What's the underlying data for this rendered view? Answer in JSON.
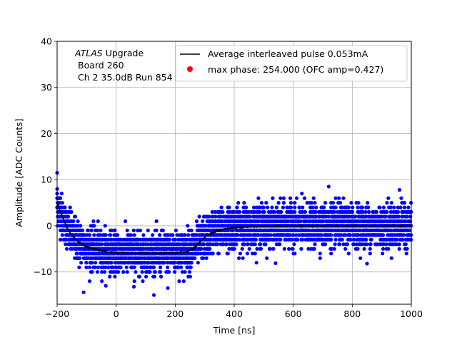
{
  "chart_data": {
    "type": "scatter",
    "title": "",
    "xlabel": "Time [ns]",
    "ylabel": "Amplitude [ADC Counts]",
    "xlim": [
      -200,
      1000
    ],
    "ylim": [
      -17,
      40
    ],
    "xticks": [
      -200,
      0,
      200,
      400,
      600,
      800,
      1000
    ],
    "yticks": [
      -10,
      0,
      10,
      20,
      30,
      40
    ],
    "grid": true,
    "annotation": {
      "line1_italic": "ATLAS",
      "line1_rest": " Upgrade",
      "line2": "Board 260",
      "line3": "Ch 2 35.0dB  Run 854"
    },
    "legend": {
      "placement": "top-right",
      "entries": [
        {
          "label": "Average interleaved pulse 0.053mA",
          "marker": "line",
          "color": "#000000"
        },
        {
          "label": "max phase: 254.000 (OFC amp=0.427)",
          "marker": "dot",
          "color": "#ff0000"
        }
      ]
    },
    "series": [
      {
        "name": "",
        "kind": "scatter",
        "color": "#0000ff",
        "description_values": {
          "baseline_before": 0,
          "undershoot_level": -5.8,
          "undershoot_start": -200,
          "undershoot_end": 250,
          "recovery_end": 420,
          "spread": 2.2
        }
      },
      {
        "name": "Average interleaved pulse 0.053mA",
        "kind": "line",
        "color": "#000000",
        "x": [
          -200,
          -180,
          -160,
          -140,
          -120,
          -100,
          -80,
          -60,
          -40,
          -20,
          0,
          50,
          100,
          150,
          200,
          240,
          260,
          280,
          300,
          320,
          350,
          400,
          450,
          500,
          600,
          700,
          800,
          900,
          1000
        ],
        "y": [
          5.0,
          1.5,
          -1.2,
          -2.8,
          -3.8,
          -4.5,
          -5.0,
          -5.3,
          -5.5,
          -5.7,
          -5.8,
          -5.9,
          -5.9,
          -5.9,
          -5.8,
          -5.6,
          -5.0,
          -3.8,
          -2.5,
          -1.6,
          -0.9,
          -0.4,
          -0.2,
          -0.1,
          0.0,
          0.0,
          0.0,
          0.0,
          0.0
        ]
      }
    ],
    "outliers": [
      {
        "x": -200,
        "y": 11.5
      },
      {
        "x": -110,
        "y": -14.4
      },
      {
        "x": 60,
        "y": -13.2
      },
      {
        "x": 175,
        "y": -13.5
      },
      {
        "x": 720,
        "y": 8.5
      },
      {
        "x": 960,
        "y": 7.8
      },
      {
        "x": 540,
        "y": -8.1
      },
      {
        "x": 850,
        "y": -8.2
      }
    ]
  }
}
